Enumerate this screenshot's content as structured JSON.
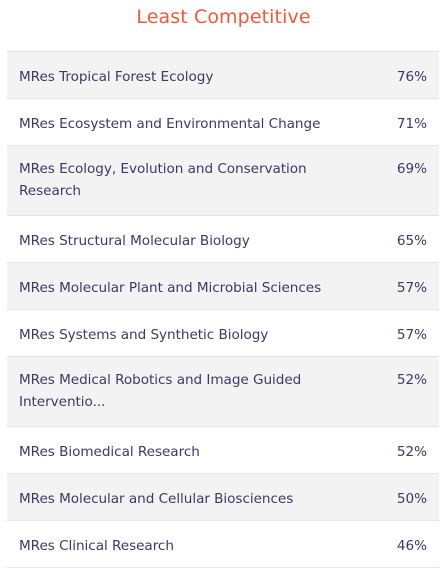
{
  "title": "Least Competitive",
  "rows": [
    {
      "name": "MRes Tropical Forest Ecology",
      "value": "76%"
    },
    {
      "name": "MRes Ecosystem and Environmental Change",
      "value": "71%"
    },
    {
      "name": "MRes Ecology, Evolution and Conservation Research",
      "value": "69%"
    },
    {
      "name": "MRes Structural Molecular Biology",
      "value": "65%"
    },
    {
      "name": "MRes Molecular Plant and Microbial Sciences",
      "value": "57%"
    },
    {
      "name": "MRes Systems and Synthetic Biology",
      "value": "57%"
    },
    {
      "name": "MRes Medical Robotics and Image Guided Interventio...",
      "value": "52%"
    },
    {
      "name": "MRes Biomedical Research",
      "value": "52%"
    },
    {
      "name": "MRes Molecular and Cellular Biosciences",
      "value": "50%"
    },
    {
      "name": "MRes Clinical Research",
      "value": "46%"
    }
  ]
}
